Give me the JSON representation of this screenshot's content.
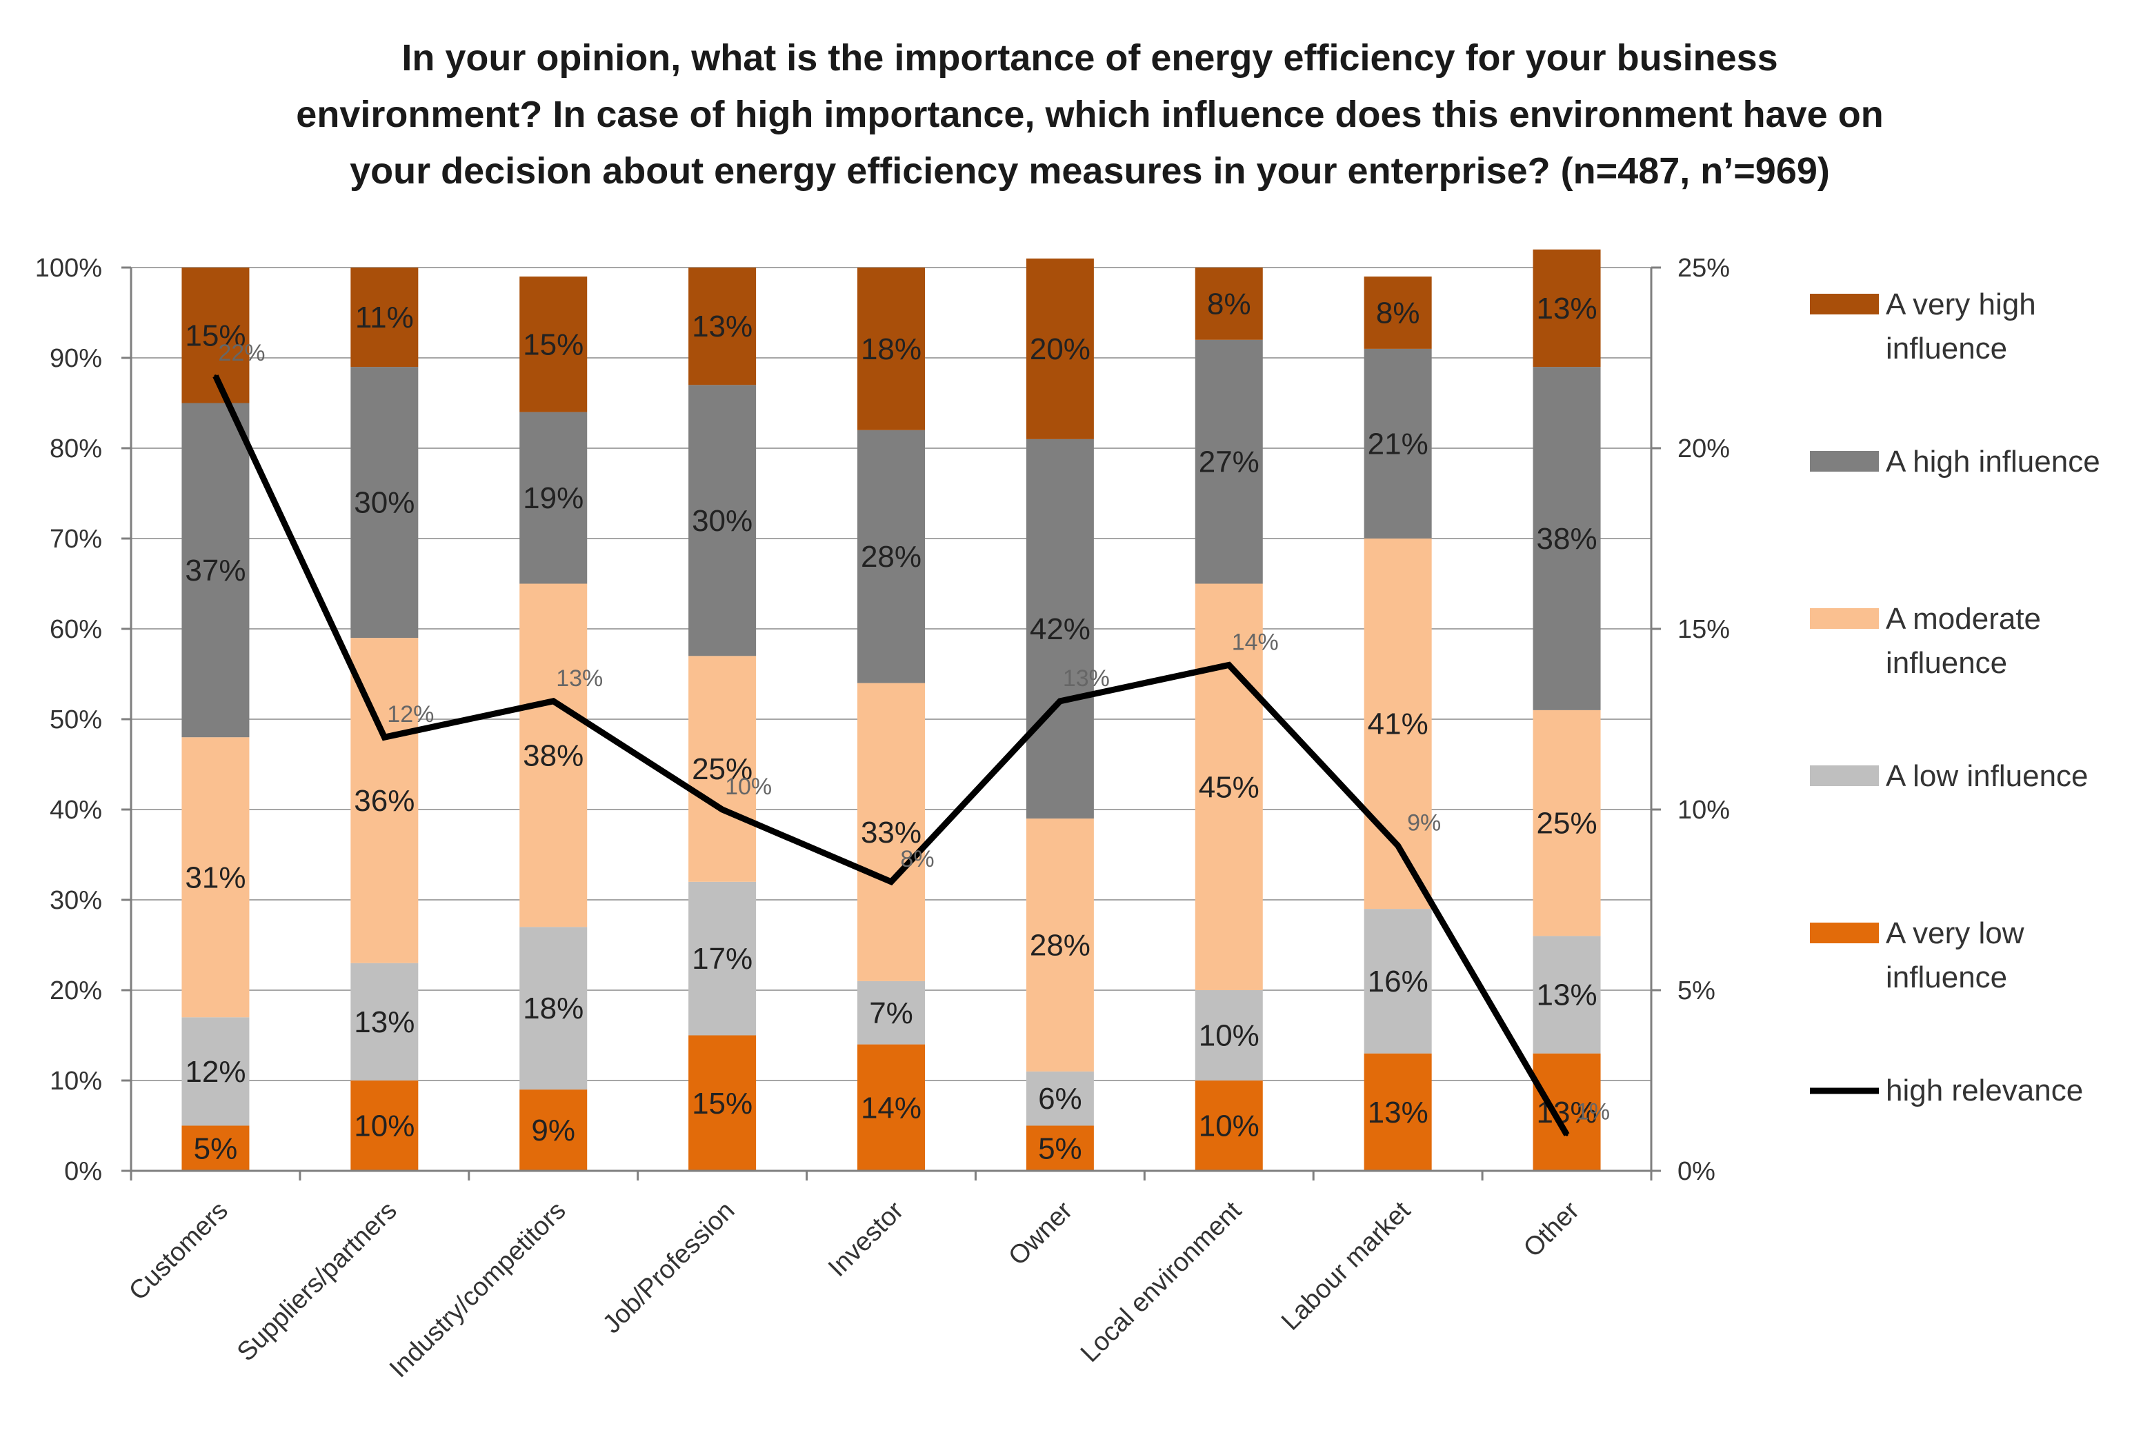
{
  "chart_data": {
    "type": "bar",
    "stacked": true,
    "title_lines": [
      "In your opinion, what is the importance of energy efficiency for your business",
      "environment?  In case of high importance, which influence does this environment have on",
      "your decision about energy efficiency measures in your enterprise? (n=487, n’=969)"
    ],
    "categories": [
      "Customers",
      "Suppliers/partners",
      "Industry/competitors",
      "Job/Profession",
      "Investor",
      "Owner",
      "Local environment",
      "Labour market",
      "Other"
    ],
    "series": [
      {
        "name": "A very low influence",
        "color": "#e26b0a",
        "values": [
          5,
          10,
          9,
          15,
          14,
          5,
          10,
          13,
          13
        ],
        "labels": [
          "5%",
          "10%",
          "9%",
          "15%",
          "14%",
          "5%",
          "10%",
          "13%",
          "13%"
        ]
      },
      {
        "name": "A low  influence",
        "color": "#bfbfbf",
        "values": [
          12,
          13,
          18,
          17,
          7,
          6,
          10,
          16,
          13
        ],
        "labels": [
          "12%",
          "13%",
          "18%",
          "17%",
          "7%",
          "6%",
          "10%",
          "16%",
          "13%"
        ]
      },
      {
        "name": "A moderate influence",
        "color": "#fac090",
        "values": [
          31,
          36,
          38,
          25,
          33,
          28,
          45,
          41,
          25
        ],
        "labels": [
          "31%",
          "36%",
          "38%",
          "25%",
          "33%",
          "28%",
          "45%",
          "41%",
          "25%"
        ]
      },
      {
        "name": "A  high influence",
        "color": "#7f7f7f",
        "values": [
          37,
          30,
          19,
          30,
          28,
          42,
          27,
          21,
          38
        ],
        "labels": [
          "37%",
          "30%",
          "19%",
          "30%",
          "28%",
          "42%",
          "27%",
          "21%",
          "38%"
        ]
      },
      {
        "name": "A very high influence",
        "color": "#a94f0a",
        "values": [
          15,
          11,
          15,
          13,
          18,
          20,
          8,
          8,
          13
        ],
        "labels": [
          "15%",
          "11%",
          "15%",
          "13%",
          "18%",
          "20%",
          "8%",
          "8%",
          "13%"
        ]
      }
    ],
    "line_series": {
      "name": "high relevance",
      "color": "#000000",
      "axis": "right",
      "values": [
        22,
        12,
        13,
        10,
        8,
        13,
        14,
        9,
        1
      ],
      "labels": [
        "22%",
        "12%",
        "13%",
        "10%",
        "8%",
        "13%",
        "14%",
        "9%",
        "1%"
      ]
    },
    "y_left": {
      "min": 0,
      "max": 100,
      "ticks": [
        "0%",
        "10%",
        "20%",
        "30%",
        "40%",
        "50%",
        "60%",
        "70%",
        "80%",
        "90%",
        "100%"
      ]
    },
    "y_right": {
      "min": 0,
      "max": 25,
      "ticks": [
        "0%",
        "5%",
        "10%",
        "15%",
        "20%",
        "25%"
      ]
    },
    "grid": true,
    "legend": {
      "position": "right",
      "entries": [
        {
          "lines": [
            "A very high",
            "influence"
          ],
          "color": "#a94f0a",
          "kind": "box"
        },
        {
          "lines": [
            "A  high influence"
          ],
          "color": "#7f7f7f",
          "kind": "box"
        },
        {
          "lines": [
            "A moderate",
            "influence"
          ],
          "color": "#fac090",
          "kind": "box"
        },
        {
          "lines": [
            "A low  influence"
          ],
          "color": "#bfbfbf",
          "kind": "box"
        },
        {
          "lines": [
            "A very low",
            "influence"
          ],
          "color": "#e26b0a",
          "kind": "box"
        },
        {
          "lines": [
            "high relevance"
          ],
          "color": "#000000",
          "kind": "line"
        }
      ]
    }
  }
}
